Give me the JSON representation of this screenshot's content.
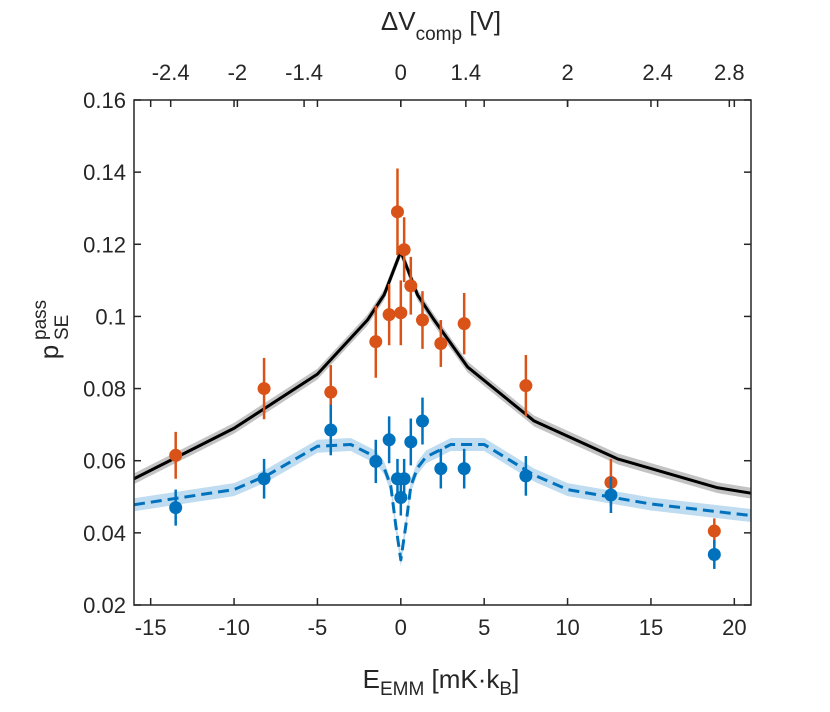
{
  "chart_data": {
    "type": "scatter",
    "xlabel": {
      "base": "E",
      "sub": "EMM",
      "unit_open": " [mK·k",
      "unit_sub": "B",
      "unit_close": "]"
    },
    "ylabel": {
      "base": "p",
      "sup": "pass",
      "sub": "SE"
    },
    "top_xlabel": {
      "prefix": "Δ",
      "base": "V",
      "sub": "comp",
      "unit": " [V]"
    },
    "xlim": [
      -16,
      21
    ],
    "ylim": [
      0.02,
      0.16
    ],
    "xticks": [
      {
        "v": -15,
        "label": "-15"
      },
      {
        "v": -10,
        "label": "-10"
      },
      {
        "v": -5,
        "label": "-5"
      },
      {
        "v": 0,
        "label": "0"
      },
      {
        "v": 5,
        "label": "5"
      },
      {
        "v": 10,
        "label": "10"
      },
      {
        "v": 15,
        "label": "15"
      },
      {
        "v": 20,
        "label": "20"
      }
    ],
    "yticks": [
      {
        "v": 0.02,
        "label": "0.02"
      },
      {
        "v": 0.04,
        "label": "0.04"
      },
      {
        "v": 0.06,
        "label": "0.06"
      },
      {
        "v": 0.08,
        "label": "0.08"
      },
      {
        "v": 0.1,
        "label": "0.1"
      },
      {
        "v": 0.12,
        "label": "0.12"
      },
      {
        "v": 0.14,
        "label": "0.14"
      },
      {
        "v": 0.16,
        "label": "0.16"
      }
    ],
    "top_xticks": [
      {
        "v": -13.8,
        "label": "-2.4"
      },
      {
        "v": -9.8,
        "label": "-2"
      },
      {
        "v": -5.8,
        "label": "-1.4"
      },
      {
        "v": 0.0,
        "label": "0"
      },
      {
        "v": 3.9,
        "label": "1.4"
      },
      {
        "v": 10.0,
        "label": "2"
      },
      {
        "v": 15.4,
        "label": "2.4"
      },
      {
        "v": 19.7,
        "label": "2.8"
      }
    ],
    "series": [
      {
        "name": "orange-data",
        "kind": "points",
        "color": "#D95319",
        "points": [
          {
            "x": -13.5,
            "y": 0.0615,
            "err": 0.0065
          },
          {
            "x": -8.2,
            "y": 0.08,
            "err": 0.0085
          },
          {
            "x": -4.2,
            "y": 0.079,
            "err": 0.0075
          },
          {
            "x": -1.5,
            "y": 0.093,
            "err": 0.01
          },
          {
            "x": -0.7,
            "y": 0.1005,
            "err": 0.0085
          },
          {
            "x": -0.2,
            "y": 0.129,
            "err": 0.012
          },
          {
            "x": 0.0,
            "y": 0.101,
            "err": 0.009
          },
          {
            "x": 0.2,
            "y": 0.1185,
            "err": 0.009
          },
          {
            "x": 0.6,
            "y": 0.1085,
            "err": 0.008
          },
          {
            "x": 1.3,
            "y": 0.099,
            "err": 0.008
          },
          {
            "x": 2.4,
            "y": 0.0925,
            "err": 0.0065
          },
          {
            "x": 3.8,
            "y": 0.098,
            "err": 0.0085
          },
          {
            "x": 7.5,
            "y": 0.0808,
            "err": 0.0085
          },
          {
            "x": 12.6,
            "y": 0.054,
            "err": 0.0065
          },
          {
            "x": 18.8,
            "y": 0.0405,
            "err": 0.0035
          }
        ]
      },
      {
        "name": "blue-data",
        "kind": "points",
        "color": "#0072BD",
        "points": [
          {
            "x": -13.5,
            "y": 0.047,
            "err": 0.005
          },
          {
            "x": -8.2,
            "y": 0.055,
            "err": 0.0055
          },
          {
            "x": -4.2,
            "y": 0.0685,
            "err": 0.007
          },
          {
            "x": -1.5,
            "y": 0.0598,
            "err": 0.006
          },
          {
            "x": -0.7,
            "y": 0.0658,
            "err": 0.0065
          },
          {
            "x": -0.2,
            "y": 0.055,
            "err": 0.0055
          },
          {
            "x": 0.0,
            "y": 0.0498,
            "err": 0.005
          },
          {
            "x": 0.2,
            "y": 0.055,
            "err": 0.0055
          },
          {
            "x": 0.6,
            "y": 0.0652,
            "err": 0.0065
          },
          {
            "x": 1.3,
            "y": 0.071,
            "err": 0.0065
          },
          {
            "x": 2.4,
            "y": 0.0578,
            "err": 0.0055
          },
          {
            "x": 3.8,
            "y": 0.0578,
            "err": 0.0055
          },
          {
            "x": 7.5,
            "y": 0.0558,
            "err": 0.0055
          },
          {
            "x": 12.6,
            "y": 0.0505,
            "err": 0.005
          },
          {
            "x": 18.8,
            "y": 0.034,
            "err": 0.004
          }
        ]
      },
      {
        "name": "black-model",
        "kind": "line",
        "color": "#000000",
        "band_color": "#bdbdbd",
        "band": 0.0015,
        "x": [
          -16,
          -10,
          -5,
          -2,
          -1,
          0,
          1,
          2,
          4,
          8,
          13,
          19,
          21
        ],
        "y": [
          0.055,
          0.069,
          0.084,
          0.099,
          0.106,
          0.118,
          0.106,
          0.099,
          0.086,
          0.071,
          0.0605,
          0.0525,
          0.051
        ]
      },
      {
        "name": "blue-model",
        "kind": "dashed-line",
        "color": "#0072BD",
        "band_color": "#b8d8ee",
        "band": 0.0018,
        "x": [
          -16,
          -10,
          -8,
          -5,
          -3,
          -1.5,
          -1,
          -0.6,
          -0.3,
          0,
          0.3,
          0.6,
          1,
          1.5,
          3,
          5,
          8,
          10,
          15,
          21
        ],
        "y": [
          0.0478,
          0.052,
          0.056,
          0.064,
          0.0645,
          0.061,
          0.058,
          0.053,
          0.042,
          0.0325,
          0.042,
          0.053,
          0.058,
          0.061,
          0.0645,
          0.0645,
          0.056,
          0.052,
          0.048,
          0.0448
        ]
      }
    ]
  }
}
